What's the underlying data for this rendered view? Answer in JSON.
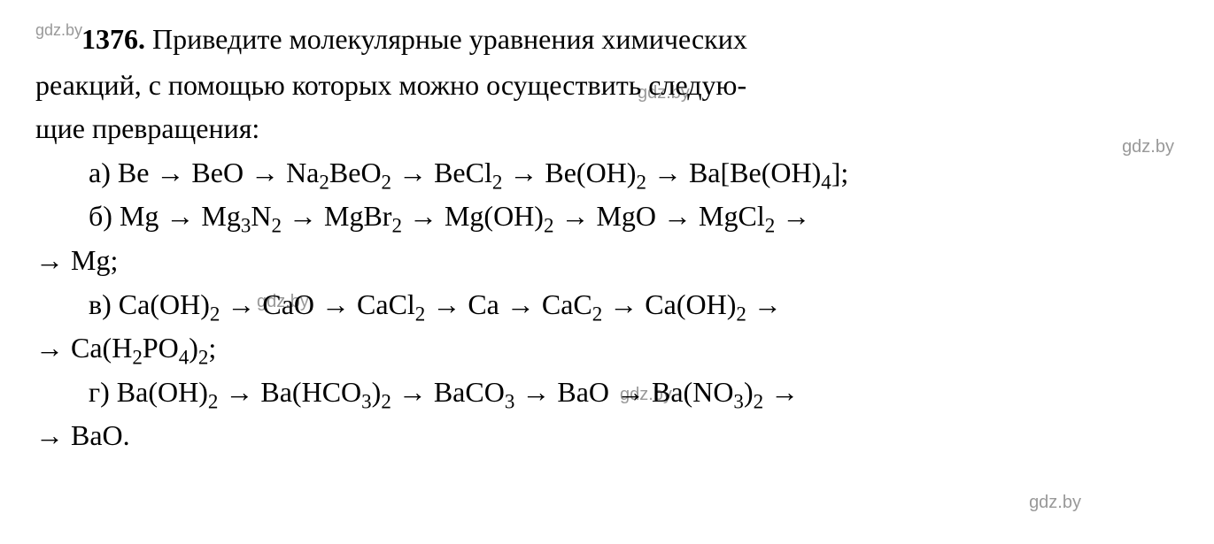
{
  "watermark": {
    "text": "gdz.by",
    "color": "#999999"
  },
  "problem": {
    "number": "1376.",
    "intro_part1": "Приведите молекулярные уравнения химических",
    "intro_part2": "реакций, с помощью которых можно осуществить следую-",
    "intro_part3": "щие превращения:",
    "items": {
      "a": {
        "label": "а)",
        "chain": "Be → BeO → Na₂BeO₂ → BeCl₂ → Be(OH)₂ → Ba[Be(OH)₄];"
      },
      "b": {
        "label": "б)",
        "chain_line1": "Mg → Mg₃N₂ → MgBr₂ → Mg(OH)₂ → MgO → MgCl₂ →",
        "chain_line2": "→ Mg;"
      },
      "v": {
        "label": "в)",
        "chain_line1": "Ca(OH)₂ → CaO → CaCl₂ → Ca → CaC₂ → Ca(OH)₂ →",
        "chain_line2": "→ Ca(H₂PO₄)₂;"
      },
      "g": {
        "label": "г)",
        "chain_line1": "Ba(OH)₂ → Ba(HCO₃)₂ → BaCO₃ → BaO → Ba(NO₃)₂ →",
        "chain_line2": "→ BaO."
      }
    }
  },
  "typography": {
    "body_fontsize": 32,
    "number_fontweight": "bold",
    "text_color": "#000000",
    "background_color": "#ffffff",
    "watermark_color": "#999999",
    "watermark_fontsize": 20,
    "font_family": "Georgia, Times New Roman, serif",
    "line_height": 1.55
  }
}
